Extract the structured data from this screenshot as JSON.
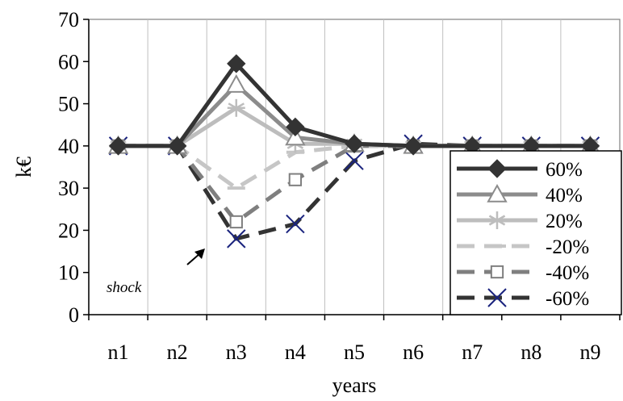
{
  "chart_data": {
    "type": "line",
    "title": "",
    "xlabel": "years",
    "ylabel": "k€",
    "categories": [
      "n1",
      "n2",
      "n3",
      "n4",
      "n5",
      "n6",
      "n7",
      "n8",
      "n9"
    ],
    "ylim": [
      0,
      70
    ],
    "yticks": [
      0,
      10,
      20,
      30,
      40,
      50,
      60,
      70
    ],
    "grid": "vertical",
    "legend_position": "right",
    "series": [
      {
        "name": "60%",
        "values": [
          40,
          40,
          59.5,
          44.5,
          40.5,
          40,
          40,
          40,
          40
        ],
        "color": "#333333",
        "dash": "solid",
        "marker": "diamond"
      },
      {
        "name": "40%",
        "values": [
          40,
          40,
          54.5,
          42,
          40.5,
          40,
          40,
          40,
          40
        ],
        "color": "#8c8c8c",
        "dash": "solid",
        "marker": "triangle"
      },
      {
        "name": "20%",
        "values": [
          40,
          40,
          49,
          40.5,
          40.5,
          40,
          40,
          40,
          40
        ],
        "color": "#bdbdbd",
        "dash": "solid",
        "marker": "asterisk"
      },
      {
        "name": "-20%",
        "values": [
          40,
          40,
          30,
          38.5,
          40,
          40,
          40,
          40,
          40
        ],
        "color": "#c6c6c6",
        "dash": "dashed",
        "marker": "dash"
      },
      {
        "name": "-40%",
        "values": [
          40,
          40,
          22,
          32,
          40,
          40,
          40,
          40,
          40
        ],
        "color": "#7f7f7f",
        "dash": "dashed",
        "marker": "square"
      },
      {
        "name": "-60%",
        "values": [
          40,
          40,
          18,
          21.5,
          36.5,
          40.5,
          40,
          40,
          40
        ],
        "color": "#333333",
        "dash": "dashed",
        "marker": "x",
        "marker_color": "#1a237e"
      }
    ],
    "annotations": [
      {
        "text": "shock",
        "arrow": true
      }
    ]
  }
}
